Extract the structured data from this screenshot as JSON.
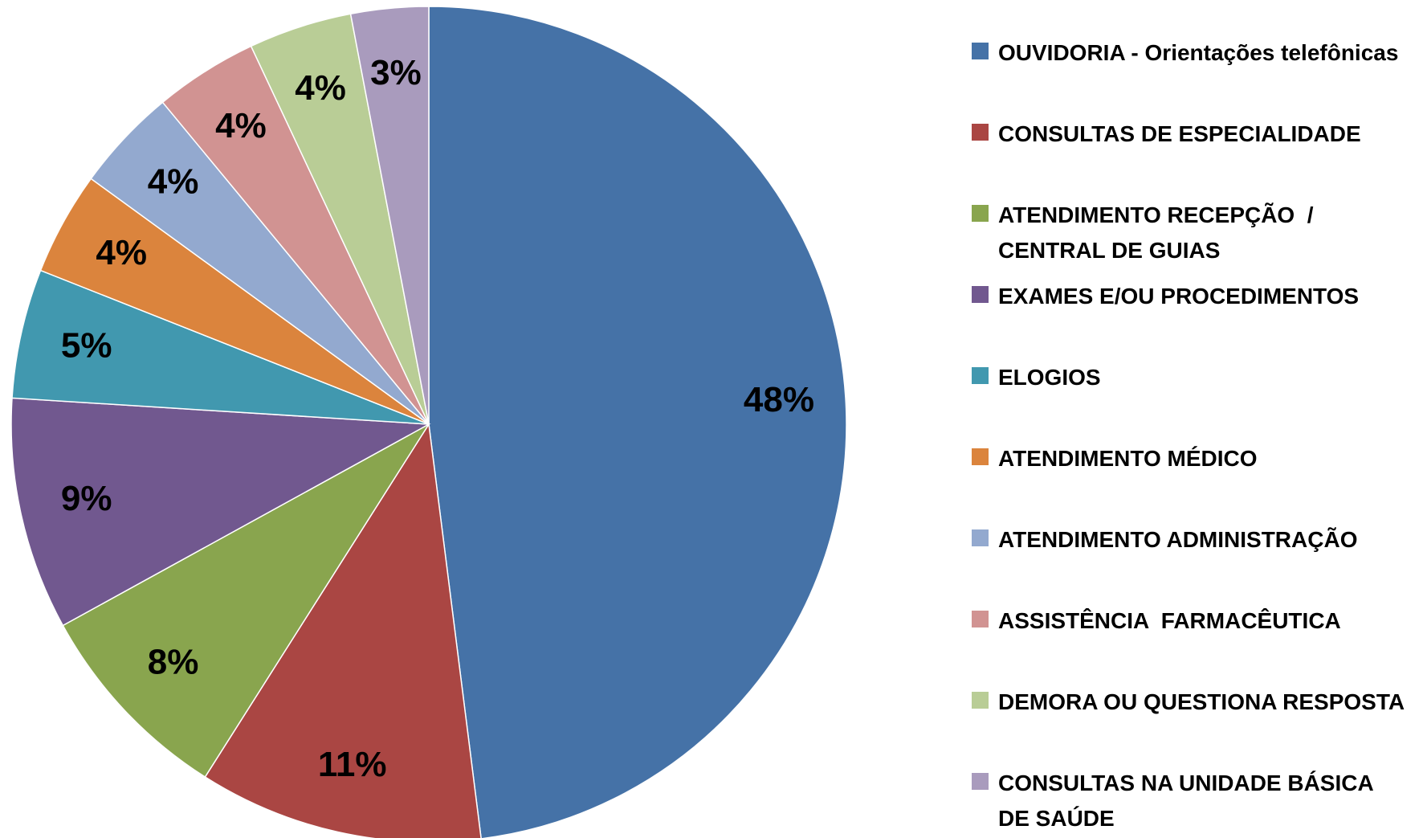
{
  "chart_data": {
    "type": "pie",
    "categories": [
      "OUVIDORIA - Orientações telefônicas",
      "CONSULTAS DE ESPECIALIDADE",
      "ATENDIMENTO RECEPÇÃO  / CENTRAL DE GUIAS",
      "EXAMES E/OU PROCEDIMENTOS",
      "ELOGIOS",
      "ATENDIMENTO MÉDICO",
      "ATENDIMENTO ADMINISTRAÇÃO",
      "ASSISTÊNCIA  FARMACÊUTICA",
      "DEMORA OU QUESTIONA RESPOSTA",
      "CONSULTAS NA UNIDADE BÁSICA DE SAÚDE"
    ],
    "values": [
      48,
      11,
      8,
      9,
      5,
      4,
      4,
      4,
      4,
      3
    ],
    "value_labels": [
      "48%",
      "11%",
      "8%",
      "9%",
      "5%",
      "4%",
      "4%",
      "4%",
      "4%",
      "3%"
    ],
    "colors": [
      "#4572a7",
      "#aa4643",
      "#89a54e",
      "#71588f",
      "#4198af",
      "#db843d",
      "#93a9cf",
      "#d19392",
      "#b9cd96",
      "#a99bbd"
    ],
    "legend": "right"
  }
}
